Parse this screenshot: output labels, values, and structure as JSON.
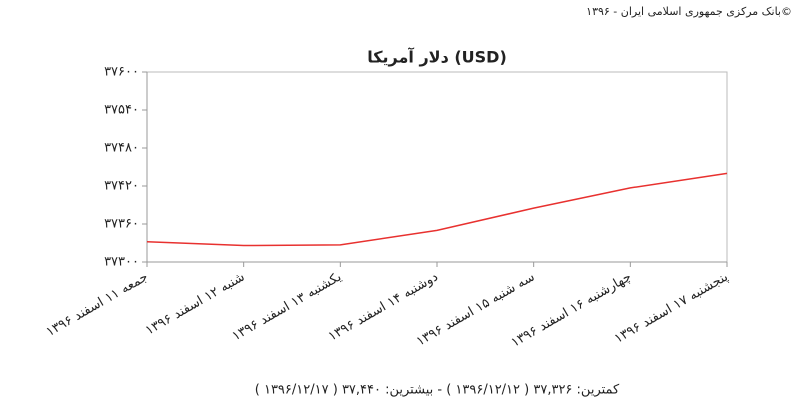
{
  "header": {
    "copyright": "بانک مرکزی جمهوری اسلامی ایران - ۱۳۹۶©"
  },
  "chart_data": {
    "type": "line",
    "title": "دلار آمریکا (USD)",
    "categories": [
      "جمعه ۱۱ اسفند ۱۳۹۶",
      "شنبه ۱۲ اسفند ۱۳۹۶",
      "یکشنبه ۱۳ اسفند ۱۳۹۶",
      "دوشنبه ۱۴ اسفند ۱۳۹۶",
      "سه شنبه ۱۵ اسفند ۱۳۹۶",
      "چهارشنبه ۱۶ اسفند ۱۳۹۶",
      "پنجشنبه ۱۷ اسفند ۱۳۹۶"
    ],
    "values": [
      37332,
      37326,
      37327,
      37350,
      37385,
      37417,
      37440
    ],
    "color": "#e8312f",
    "ylim": [
      37300,
      37600
    ],
    "yticks": [
      {
        "value": 37300,
        "label": "۳۷۳۰۰"
      },
      {
        "value": 37360,
        "label": "۳۷۳۶۰"
      },
      {
        "value": 37420,
        "label": "۳۷۴۲۰"
      },
      {
        "value": 37480,
        "label": "۳۷۴۸۰"
      },
      {
        "value": 37540,
        "label": "۳۷۵۴۰"
      },
      {
        "value": 37600,
        "label": "۳۷۶۰۰"
      }
    ],
    "footer": "کمترین: ۳۷,۳۲۶ ( ۱۳۹۶/۱۲/۱۲ ) - بیشترین: ۳۷,۴۴۰ ( ۱۳۹۶/۱۲/۱۷ )"
  }
}
